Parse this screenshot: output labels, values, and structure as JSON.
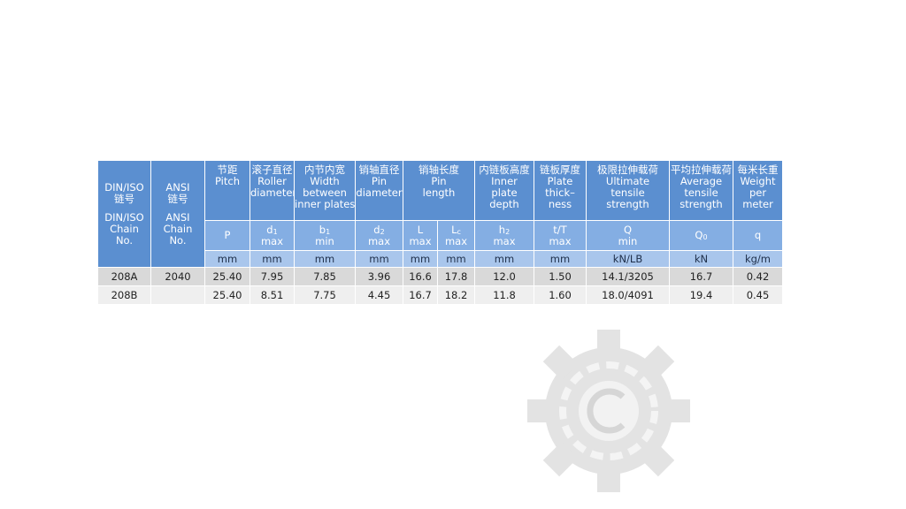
{
  "table": {
    "head_main": [
      {
        "zh": [
          "DIN/ISO",
          "链号"
        ],
        "en": [
          "DIN/ISO",
          "Chain",
          "No."
        ]
      },
      {
        "zh": [
          "ANSI",
          "链号"
        ],
        "en": [
          "ANSI",
          "Chain",
          "No."
        ]
      },
      {
        "zh": [
          "节距"
        ],
        "en": [
          "Pitch"
        ]
      },
      {
        "zh": [
          "滚子直径"
        ],
        "en": [
          "Roller",
          "diameter"
        ]
      },
      {
        "zh": [
          "内节内宽"
        ],
        "en": [
          "Width",
          "between",
          "inner plates"
        ]
      },
      {
        "zh": [
          "销轴直径"
        ],
        "en": [
          "Pin",
          "diameter"
        ]
      },
      {
        "zh": [
          "销轴长度"
        ],
        "en": [
          "Pin",
          "length"
        ]
      },
      {
        "zh": [
          "内链板高度"
        ],
        "en": [
          "Inner",
          "plate",
          "depth"
        ]
      },
      {
        "zh": [
          "链板厚度"
        ],
        "en": [
          "Plate",
          "thick–",
          "ness"
        ]
      },
      {
        "zh": [
          "极限拉伸载荷"
        ],
        "en": [
          "Ultimate",
          "tensile",
          "strength"
        ]
      },
      {
        "zh": [
          "平均拉伸载荷"
        ],
        "en": [
          "Average",
          "tensile",
          "strength"
        ]
      },
      {
        "zh": [
          "每米长重"
        ],
        "en": [
          "Weight",
          "per",
          "meter"
        ]
      }
    ],
    "symbols": [
      {
        "base": "P"
      },
      {
        "base": "d",
        "sub": "1",
        "limit": "max"
      },
      {
        "base": "b",
        "sub": "1",
        "limit": "min"
      },
      {
        "base": "d",
        "sub": "2",
        "limit": "max"
      },
      {
        "base": "L",
        "limit": "max"
      },
      {
        "base": "L",
        "sub": "c",
        "limit": "max"
      },
      {
        "base": "h",
        "sub": "2",
        "limit": "max"
      },
      {
        "base": "t/T",
        "limit": "max"
      },
      {
        "base": "Q",
        "limit": "min"
      },
      {
        "base": "Q",
        "sub": "0"
      },
      {
        "base": "q"
      }
    ],
    "units": [
      "mm",
      "mm",
      "mm",
      "mm",
      "mm",
      "mm",
      "mm",
      "mm",
      "kN/LB",
      "kN",
      "kg/m"
    ],
    "rows": [
      [
        "208A",
        "2040",
        "25.40",
        "7.95",
        "7.85",
        "3.96",
        "16.6",
        "17.8",
        "12.0",
        "1.50",
        "14.1/3205",
        "16.7",
        "0.42"
      ],
      [
        "208B",
        null,
        "25.40",
        "8.51",
        "7.75",
        "4.45",
        "16.7",
        "18.2",
        "11.8",
        "1.60",
        "18.0/4091",
        "19.4",
        "0.45"
      ]
    ]
  }
}
